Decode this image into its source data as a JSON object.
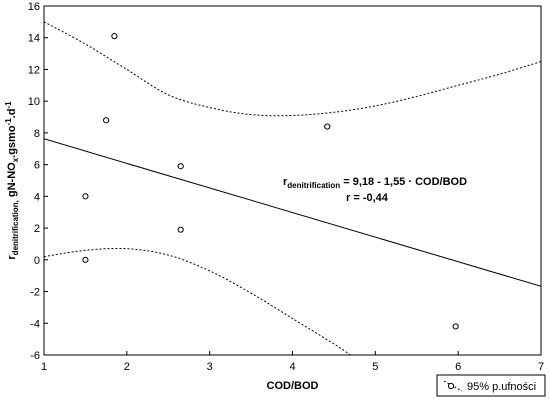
{
  "chart_data": {
    "type": "scatter",
    "xlabel": "COD/BOD",
    "ylabel": {
      "main": "r",
      "main_sub": "denitrification,",
      "rest": " gN-NO",
      "rest_sub": "x",
      "rest2": ".gsmo",
      "sup1": "-1",
      "rest3": ".d",
      "sup2": "-1"
    },
    "xlim": [
      1,
      7
    ],
    "ylim": [
      -6,
      16
    ],
    "x_ticks": [
      1,
      2,
      3,
      4,
      5,
      6,
      7
    ],
    "y_ticks": [
      -6,
      -4,
      -2,
      0,
      2,
      4,
      6,
      8,
      10,
      12,
      14,
      16
    ],
    "grid": false,
    "points": [
      {
        "x": 1.85,
        "y": 14.1
      },
      {
        "x": 1.75,
        "y": 8.8
      },
      {
        "x": 1.5,
        "y": 4.0
      },
      {
        "x": 1.5,
        "y": 0.0
      },
      {
        "x": 2.65,
        "y": 5.9
      },
      {
        "x": 2.65,
        "y": 1.9
      },
      {
        "x": 4.42,
        "y": 8.4
      },
      {
        "x": 5.97,
        "y": -4.2
      }
    ],
    "regression": {
      "intercept": 9.18,
      "slope": -1.55
    },
    "confidence_upper": [
      {
        "x": 1.0,
        "y": 15.0
      },
      {
        "x": 1.5,
        "y": 13.6
      },
      {
        "x": 2.0,
        "y": 12.0
      },
      {
        "x": 2.5,
        "y": 10.4
      },
      {
        "x": 3.0,
        "y": 9.6
      },
      {
        "x": 3.5,
        "y": 9.15
      },
      {
        "x": 4.0,
        "y": 9.1
      },
      {
        "x": 4.5,
        "y": 9.3
      },
      {
        "x": 5.0,
        "y": 9.7
      },
      {
        "x": 5.5,
        "y": 10.3
      },
      {
        "x": 6.0,
        "y": 11.0
      },
      {
        "x": 6.5,
        "y": 11.7
      },
      {
        "x": 7.0,
        "y": 12.5
      }
    ],
    "confidence_lower": [
      {
        "x": 1.0,
        "y": 0.2
      },
      {
        "x": 1.5,
        "y": 0.6
      },
      {
        "x": 2.0,
        "y": 0.7
      },
      {
        "x": 2.5,
        "y": 0.3
      },
      {
        "x": 3.0,
        "y": -0.7
      },
      {
        "x": 3.5,
        "y": -2.1
      },
      {
        "x": 4.0,
        "y": -3.7
      },
      {
        "x": 4.5,
        "y": -5.3
      },
      {
        "x": 4.7,
        "y": -6.0
      }
    ],
    "annotation": {
      "eq_r": "r",
      "eq_sub": "denitrification",
      "eq_rest": " = 9,18 - 1,55 · COD/BOD",
      "r_line": "r =   -0,44"
    },
    "legend": {
      "label": "95% p.ufności",
      "placement": "bottom-right"
    }
  }
}
